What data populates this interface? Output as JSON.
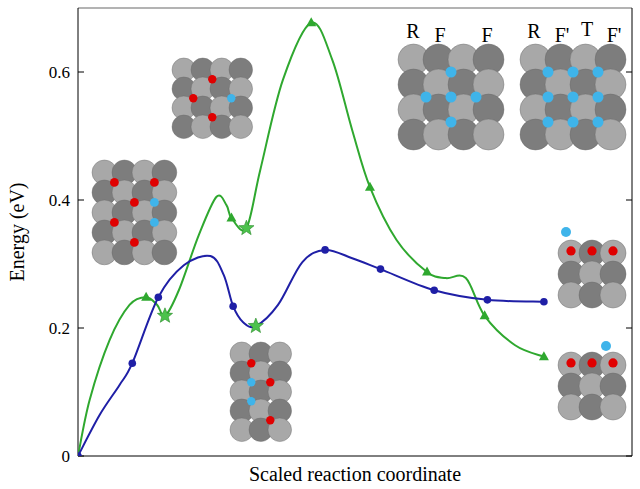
{
  "chart_data": {
    "type": "line",
    "x_label": "Scaled reaction coordinate",
    "y_label": "Energy (eV)",
    "xlim": [
      0,
      1
    ],
    "ylim": [
      0,
      0.7
    ],
    "yticks": [
      0,
      0.2,
      0.4,
      0.6
    ],
    "tick_labels": "y",
    "grid": false,
    "annotations": [
      "R",
      "F",
      "F",
      "R",
      "F'",
      "T",
      "F'"
    ],
    "series": [
      {
        "type": "line",
        "color": "#2fa82f",
        "line_style": "solid",
        "x": [
          0,
          0.021,
          0.057,
          0.093,
          0.123,
          0.143,
          0.157,
          0.182,
          0.218,
          0.25,
          0.268,
          0.277,
          0.304,
          0.329,
          0.37,
          0.421,
          0.459,
          0.495,
          0.527,
          0.575,
          0.63,
          0.664,
          0.7,
          0.734,
          0.789,
          0.841
        ],
        "values": [
          0,
          0.0875,
          0.181,
          0.236,
          0.248,
          0.236,
          0.219,
          0.259,
          0.345,
          0.405,
          0.392,
          0.372,
          0.356,
          0.447,
          0.588,
          0.677,
          0.619,
          0.509,
          0.42,
          0.3375,
          0.2875,
          0.278,
          0.278,
          0.219,
          0.173,
          0.155
        ]
      },
      {
        "type": "line",
        "color": "#1f1fa6",
        "line_style": "solid",
        "x": [
          0,
          0.039,
          0.075,
          0.098,
          0.145,
          0.191,
          0.239,
          0.263,
          0.28,
          0.298,
          0.321,
          0.361,
          0.405,
          0.446,
          0.495,
          0.546,
          0.643,
          0.739,
          0.841
        ],
        "values": [
          0,
          0.064,
          0.111,
          0.145,
          0.248,
          0.298,
          0.3125,
          0.283,
          0.234,
          0.209,
          0.203,
          0.236,
          0.303,
          0.322,
          0.309,
          0.292,
          0.259,
          0.244,
          0.241
        ]
      },
      {
        "type": "scatter",
        "color": "#2fa82f",
        "marker": "triangle",
        "x": [
          0,
          0.123,
          0.277,
          0.421,
          0.527,
          0.63,
          0.734,
          0.841
        ],
        "values": [
          0,
          0.248,
          0.372,
          0.677,
          0.42,
          0.2875,
          0.219,
          0.155
        ]
      },
      {
        "type": "scatter",
        "color": "#1f1fa6",
        "marker": "circle",
        "x": [
          0,
          0.098,
          0.145,
          0.28,
          0.446,
          0.546,
          0.643,
          0.739,
          0.841
        ],
        "values": [
          0,
          0.145,
          0.248,
          0.234,
          0.322,
          0.292,
          0.259,
          0.244,
          0.241
        ]
      },
      {
        "type": "scatter",
        "color": "#4cc24c",
        "marker": "star",
        "x": [
          0.157,
          0.304,
          0.321
        ],
        "values": [
          0.219,
          0.356,
          0.203
        ]
      }
    ]
  }
}
